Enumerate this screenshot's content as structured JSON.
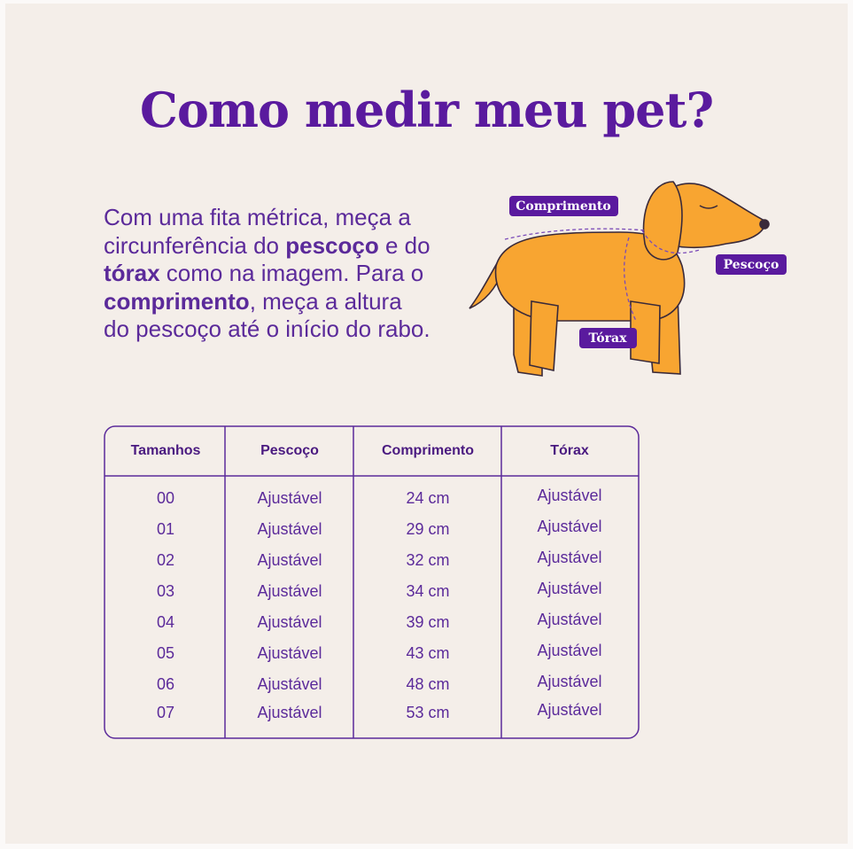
{
  "title": "Como medir meu pet?",
  "intro": [
    "Com uma fita métrica, meça a circunferência do ",
    "pescoço",
    " e do ",
    "tórax",
    " como na imagem. Para o ",
    "comprimento",
    ", meça a altura do pescoço até o início do rabo."
  ],
  "diagram": {
    "labels": [
      "Comprimento",
      "Pescoço",
      "Tórax"
    ]
  },
  "table": {
    "header": [
      "Tamanhos",
      "Pescoço",
      "Comprimento",
      "Tórax"
    ],
    "rows": [
      [
        "00",
        "Ajustável",
        "24 cm",
        "Ajustável"
      ],
      [
        "01",
        "Ajustável",
        "29 cm",
        "Ajustável"
      ],
      [
        "02",
        "Ajustável",
        "32 cm",
        "Ajustável"
      ],
      [
        "03",
        "Ajustável",
        "34 cm",
        "Ajustável"
      ],
      [
        "04",
        "Ajustável",
        "39 cm",
        "Ajustável"
      ],
      [
        "05",
        "Ajustável",
        "43 cm",
        "Ajustável"
      ],
      [
        "06",
        "Ajustável",
        "48 cm",
        "Ajustável"
      ],
      [
        "07",
        "Ajustável",
        "53 cm",
        "Ajustável"
      ]
    ]
  }
}
